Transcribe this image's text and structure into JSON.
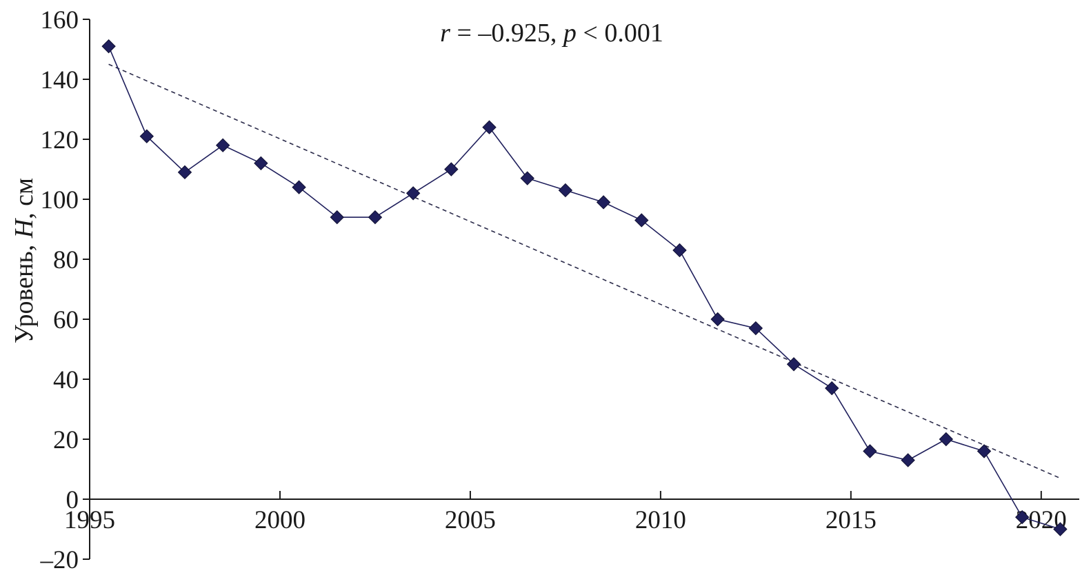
{
  "chart_data": {
    "type": "line",
    "ylabel_parts": [
      "Уровень, ",
      "H",
      ", см"
    ],
    "annotation_parts": [
      "r",
      " = –0.925, ",
      "p",
      " < 0.001"
    ],
    "xlim": [
      1995,
      2021
    ],
    "ylim": [
      -20,
      160
    ],
    "x_ticks": [
      1995,
      2000,
      2005,
      2010,
      2015,
      2020
    ],
    "y_ticks": [
      160,
      140,
      120,
      100,
      80,
      60,
      40,
      20,
      0,
      -20
    ],
    "y_tick_labels": [
      "160",
      "140",
      "120",
      "100",
      "80",
      "60",
      "40",
      "20",
      "0",
      "–20"
    ],
    "series": [
      {
        "x": [
          1995.5,
          1996.5,
          1997.5,
          1998.5,
          1999.5,
          2000.5,
          2001.5,
          2002.5,
          2003.5,
          2004.5,
          2005.5,
          2006.5,
          2007.5,
          2008.5,
          2009.5,
          2010.5,
          2011.5,
          2012.5,
          2013.5,
          2014.5,
          2015.5,
          2016.5,
          2017.5,
          2018.5,
          2019.5,
          2020.5
        ],
        "y": [
          151,
          121,
          109,
          118,
          112,
          104,
          94,
          94,
          102,
          110,
          124,
          107,
          103,
          99,
          93,
          83,
          60,
          57,
          45,
          37,
          16,
          13,
          20,
          16,
          -6,
          -10
        ],
        "color": "#1f1f5c",
        "marker": "diamond"
      }
    ],
    "trendline": {
      "x": [
        1995.5,
        2020.5
      ],
      "y": [
        145,
        7
      ],
      "style": "dashed",
      "color": "#2b2b4a"
    },
    "grid": false,
    "legend": "none"
  }
}
